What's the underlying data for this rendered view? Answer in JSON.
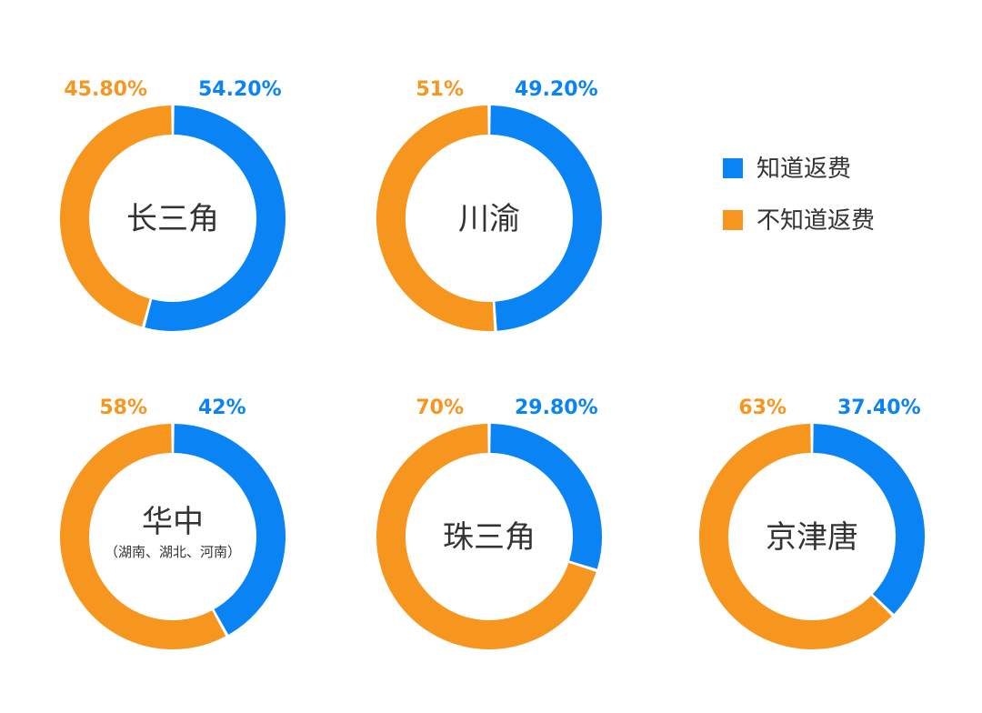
{
  "colors": {
    "know": "#0a84f5",
    "not_know": "#f7961e",
    "text": "#333333"
  },
  "legend": [
    {
      "label": "知道返费",
      "color": "#0a84f5"
    },
    {
      "label": "不知道返费",
      "color": "#f7961e"
    }
  ],
  "chart_data": [
    {
      "type": "pie",
      "title": "长三角",
      "subtitle": "",
      "slices": [
        {
          "label": "知道返费",
          "value": 54.2,
          "text": "54.20%"
        },
        {
          "label": "不知道返费",
          "value": 45.8,
          "text": "45.80%"
        }
      ]
    },
    {
      "type": "pie",
      "title": "川渝",
      "subtitle": "",
      "slices": [
        {
          "label": "知道返费",
          "value": 49.2,
          "text": "49.20%"
        },
        {
          "label": "不知道返费",
          "value": 51,
          "text": "51%"
        }
      ]
    },
    {
      "type": "pie",
      "title": "华中",
      "subtitle": "（湖南、湖北、河南）",
      "slices": [
        {
          "label": "知道返费",
          "value": 42,
          "text": "42%"
        },
        {
          "label": "不知道返费",
          "value": 58,
          "text": "58%"
        }
      ]
    },
    {
      "type": "pie",
      "title": "珠三角",
      "subtitle": "",
      "slices": [
        {
          "label": "知道返费",
          "value": 29.8,
          "text": "29.80%"
        },
        {
          "label": "不知道返费",
          "value": 70,
          "text": "70%"
        }
      ]
    },
    {
      "type": "pie",
      "title": "京津唐",
      "subtitle": "",
      "slices": [
        {
          "label": "知道返费",
          "value": 37.4,
          "text": "37.40%"
        },
        {
          "label": "不知道返费",
          "value": 63,
          "text": "63%"
        }
      ]
    }
  ]
}
